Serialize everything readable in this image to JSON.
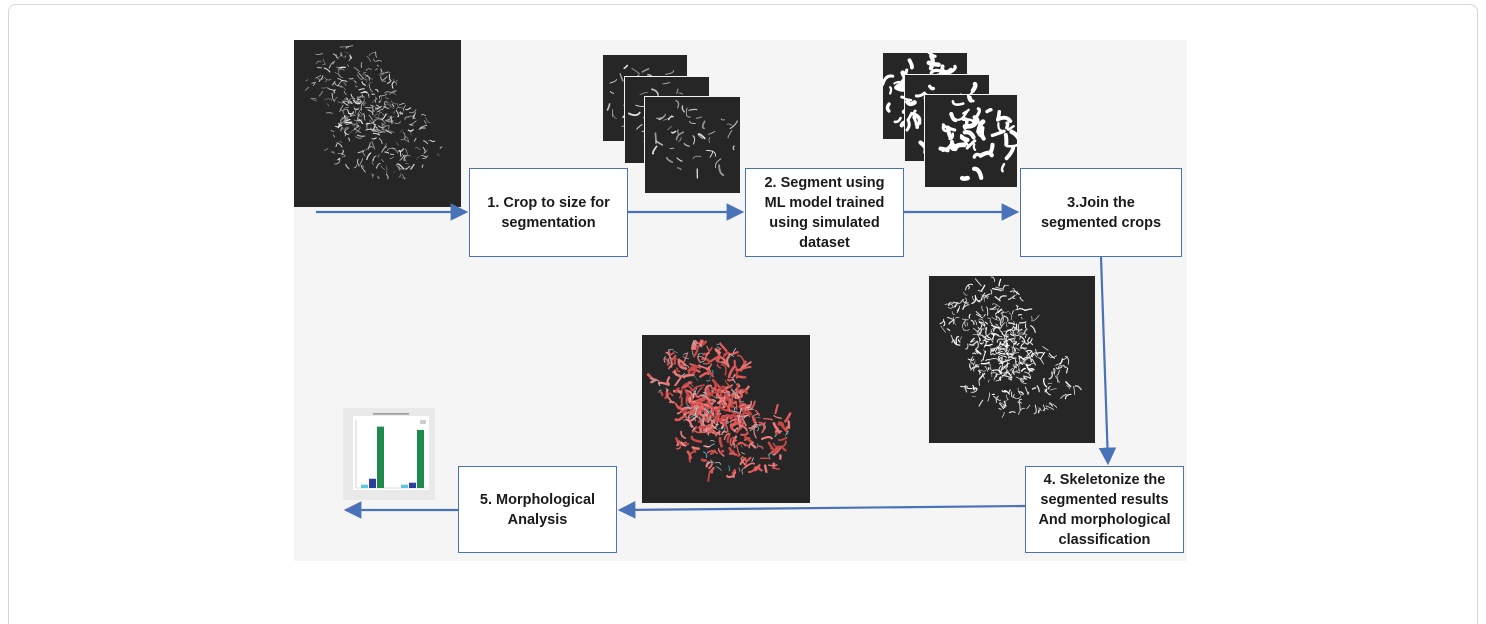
{
  "steps": {
    "s1": "1. Crop to size for\nsegmentation",
    "s2": "2. Segment using\nML model trained\nusing simulated\ndataset",
    "s3": "3.Join the\nsegmented crops",
    "s4": "4. Skeletonize the\nsegmented results\nAnd morphological\nclassification",
    "s5": "5. Morphological\nAnalysis"
  },
  "colors": {
    "arrow": "#4a72b8",
    "box_border": "#4a72b8",
    "micro_bg": "#262626",
    "skeleton_red": "#e05a5a",
    "bar_light": "#5bc8e6",
    "bar_dark": "#2a3f9e",
    "bar_green": "#1e8a4c"
  },
  "thumbnail_chart": {
    "groups": 2,
    "series_values": [
      [
        0.05,
        0.14,
        0.93
      ],
      [
        0.05,
        0.08,
        0.88
      ]
    ]
  }
}
